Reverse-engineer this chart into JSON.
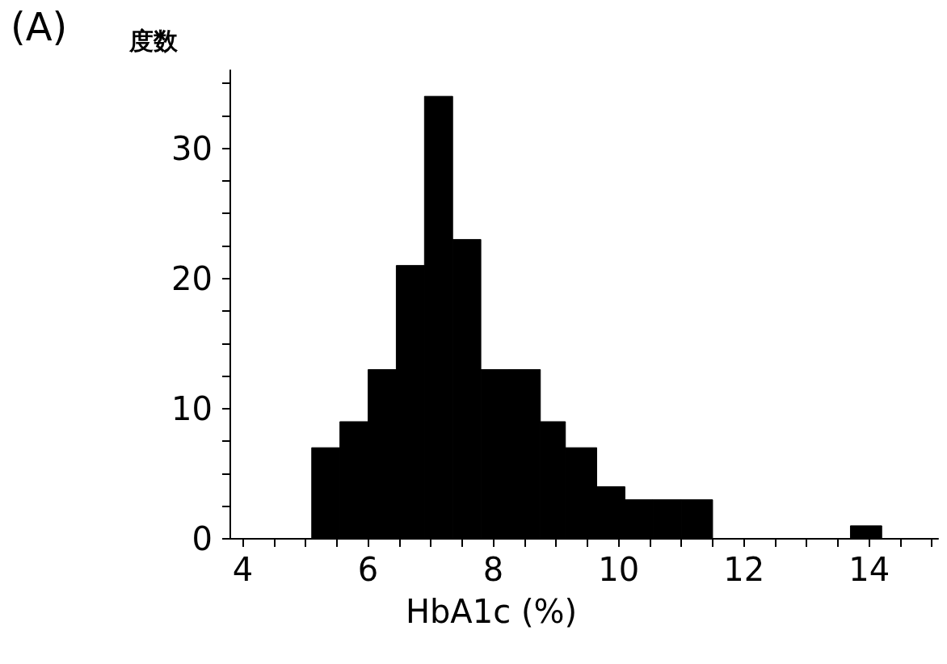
{
  "chart_data": {
    "type": "histogram",
    "title": "(A)",
    "ylabel": "度数",
    "xlabel": "HbA1c (%)",
    "bins": [
      5.1,
      5.55,
      6.0,
      6.45,
      6.9,
      7.35,
      7.8,
      8.25,
      8.75,
      9.15,
      9.65,
      10.1,
      10.55,
      11.0,
      11.5,
      13.7,
      14.2
    ],
    "values": [
      7,
      9,
      13,
      21,
      34,
      23,
      13,
      13,
      9,
      7,
      4,
      3,
      3,
      3,
      0,
      1
    ],
    "color": "#000000",
    "xlim": [
      3.8,
      15.1
    ],
    "xticks": [
      4,
      {
        "value": 4.5,
        "label": null
      },
      {
        "value": 5,
        "label": null
      },
      {
        "value": 5.5,
        "label": null
      },
      6,
      {
        "value": 6.5,
        "label": null
      },
      {
        "value": 7,
        "label": null
      },
      {
        "value": 7.5,
        "label": null
      },
      8,
      {
        "value": 8.5,
        "label": null
      },
      {
        "value": 9,
        "label": null
      },
      {
        "value": 9.5,
        "label": null
      },
      10,
      {
        "value": 10.5,
        "label": null
      },
      {
        "value": 11,
        "label": null
      },
      {
        "value": 11.5,
        "label": null
      },
      12,
      {
        "value": 12.5,
        "label": null
      },
      {
        "value": 13,
        "label": null
      },
      {
        "value": 13.5,
        "label": null
      },
      14,
      {
        "value": 14.5,
        "label": null
      },
      {
        "value": 15,
        "label": null
      }
    ],
    "ylim": [
      0,
      36
    ],
    "yticks": [
      0,
      {
        "value": 2.5,
        "label": null
      },
      {
        "value": 5,
        "label": null
      },
      {
        "value": 7.5,
        "label": null
      },
      10,
      {
        "value": 12.5,
        "label": null
      },
      {
        "value": 15,
        "label": null
      },
      {
        "value": 17.5,
        "label": null
      },
      20,
      {
        "value": 22.5,
        "label": null
      },
      {
        "value": 25,
        "label": null
      },
      {
        "value": 27.5,
        "label": null
      },
      30,
      {
        "value": 32.5,
        "label": null
      },
      {
        "value": 35,
        "label": null
      }
    ],
    "marker": "none"
  }
}
